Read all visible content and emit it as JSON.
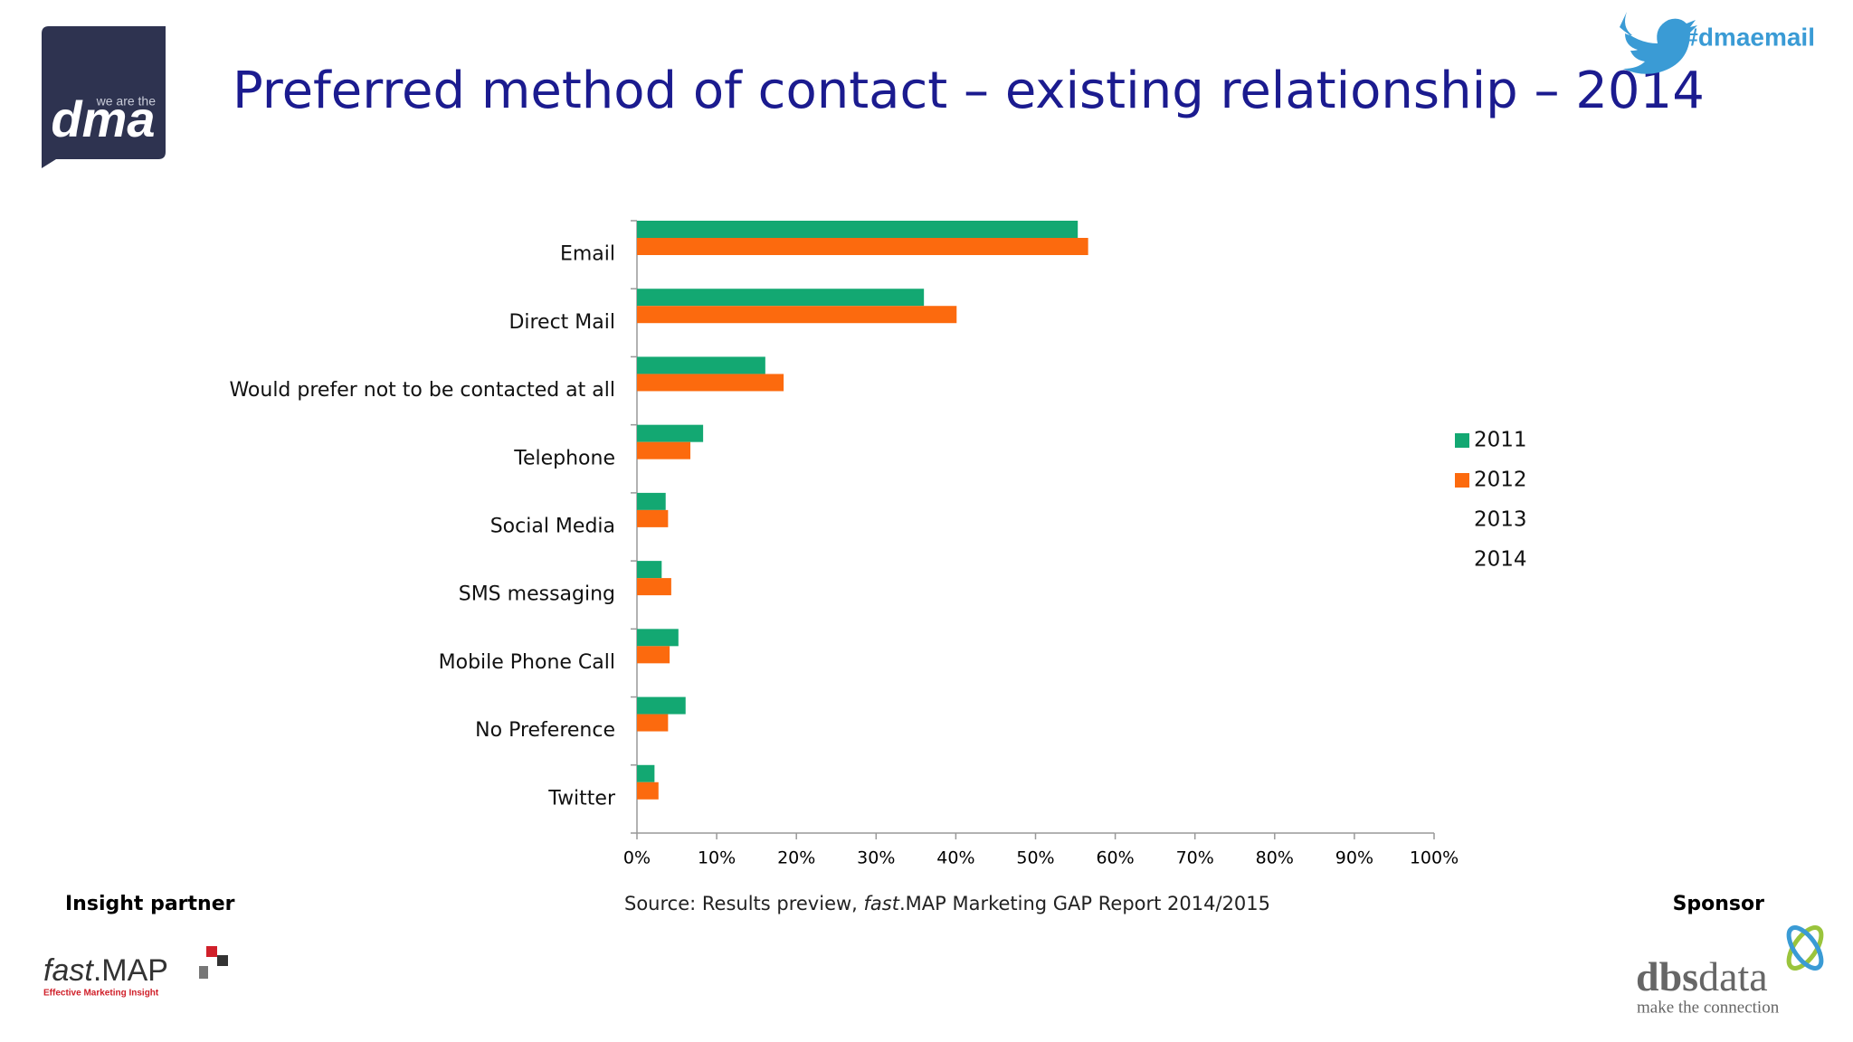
{
  "header": {
    "hashtag": "#dmaemail",
    "logo_tagline": "we are the",
    "logo": "dma"
  },
  "chart_data": {
    "type": "hbar",
    "title": "Preferred method of contact – existing relationship – 2014",
    "categories": [
      "Email",
      "Direct Mail",
      "Would prefer not to be contacted at all",
      "Telephone",
      "Social Media",
      "SMS messaging",
      "Mobile Phone Call",
      "No Preference",
      "Twitter"
    ],
    "series": [
      {
        "name": "2011",
        "color": "#13a872",
        "values": [
          55.3,
          36.0,
          16.1,
          8.3,
          3.6,
          3.1,
          5.2,
          6.1,
          2.2
        ]
      },
      {
        "name": "2012",
        "color": "#fc6a0e",
        "values": [
          56.6,
          40.1,
          18.4,
          6.7,
          3.9,
          4.3,
          4.1,
          3.9,
          2.7
        ]
      },
      {
        "name": "2013",
        "color": "#ffffff",
        "values": [
          null,
          null,
          null,
          null,
          null,
          null,
          null,
          null,
          null
        ]
      },
      {
        "name": "2014",
        "color": "#ffffff",
        "values": [
          null,
          null,
          null,
          null,
          null,
          null,
          null,
          null,
          null
        ]
      }
    ],
    "xlim": [
      0,
      100
    ],
    "xticks": [
      {
        "value": 0,
        "label": "0%"
      },
      {
        "value": 10,
        "label": "10%"
      },
      {
        "value": 20,
        "label": "20%"
      },
      {
        "value": 30,
        "label": "30%"
      },
      {
        "value": 40,
        "label": "40%"
      },
      {
        "value": 50,
        "label": "50%"
      },
      {
        "value": 60,
        "label": "60%"
      },
      {
        "value": 70,
        "label": "70%"
      },
      {
        "value": 80,
        "label": "80%"
      },
      {
        "value": 90,
        "label": "90%"
      },
      {
        "value": 100,
        "label": "100%"
      }
    ],
    "grid": false,
    "legend": "right"
  },
  "footer": {
    "insight_partner": "Insight partner",
    "sponsor": "Sponsor",
    "source": [
      "Source: Results preview, ",
      "fast",
      ".MAP Marketing GAP Report 2014/2015"
    ],
    "partner_logo": [
      "fast",
      ".MAP"
    ],
    "partner_tagline": "Effective Marketing Insight",
    "sponsor_logo": [
      "dbs",
      "data"
    ],
    "sponsor_tagline": "make the connection"
  }
}
